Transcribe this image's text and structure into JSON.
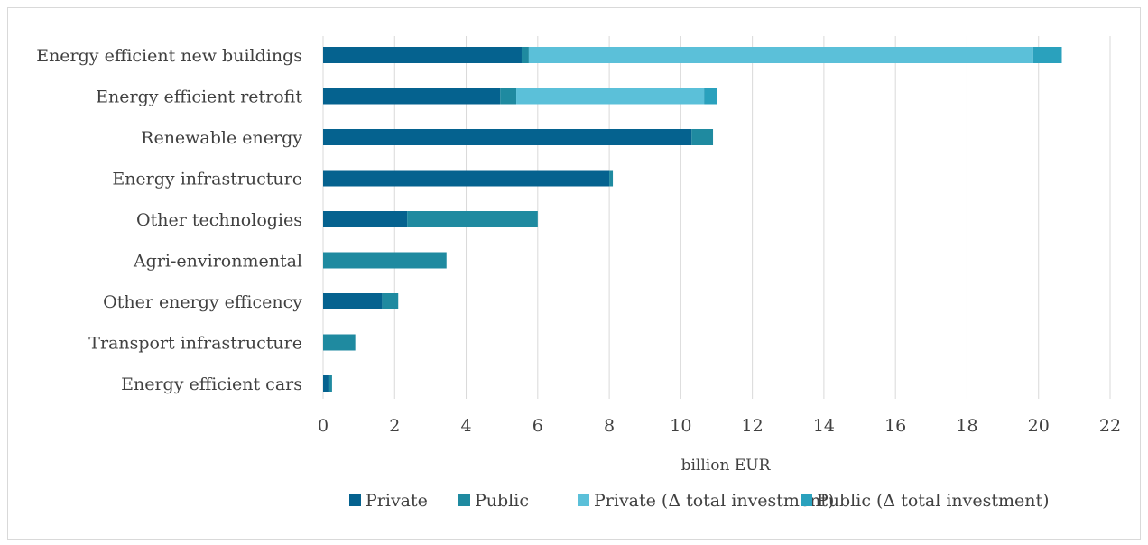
{
  "chart_data": {
    "type": "bar",
    "orientation": "horizontal",
    "stacked": true,
    "title": "",
    "xlabel": "billion EUR",
    "ylabel": "",
    "xlim": [
      0,
      22
    ],
    "xticks": [
      "0",
      "2",
      "4",
      "6",
      "8",
      "10",
      "12",
      "14",
      "16",
      "18",
      "20",
      "22"
    ],
    "grid": "vertical",
    "legend_position": "bottom",
    "categories": [
      "Energy efficient new buildings",
      "Energy efficient retrofit",
      "Renewable energy",
      "Energy infrastructure",
      "Other technologies",
      "Agri-environmental",
      "Other energy efficency",
      "Transport infrastructure",
      "Energy efficient cars"
    ],
    "series": [
      {
        "name": "Private",
        "color": "#05628f",
        "values": [
          5.55,
          4.95,
          10.3,
          8.0,
          2.35,
          0.0,
          1.65,
          0.0,
          0.15
        ]
      },
      {
        "name": "Public",
        "color": "#1f8aa0",
        "values": [
          0.2,
          0.45,
          0.6,
          0.1,
          3.65,
          3.45,
          0.45,
          0.9,
          0.1
        ]
      },
      {
        "name": "Private (Δ total investment)",
        "color": "#5bc0d9",
        "values": [
          14.1,
          5.25,
          0.0,
          0.0,
          0.0,
          0.0,
          0.0,
          0.0,
          0.0
        ]
      },
      {
        "name": "Public (Δ total investment)",
        "color": "#2aa1bd",
        "values": [
          0.8,
          0.35,
          0.0,
          0.0,
          0.0,
          0.0,
          0.0,
          0.0,
          0.0
        ]
      }
    ]
  }
}
